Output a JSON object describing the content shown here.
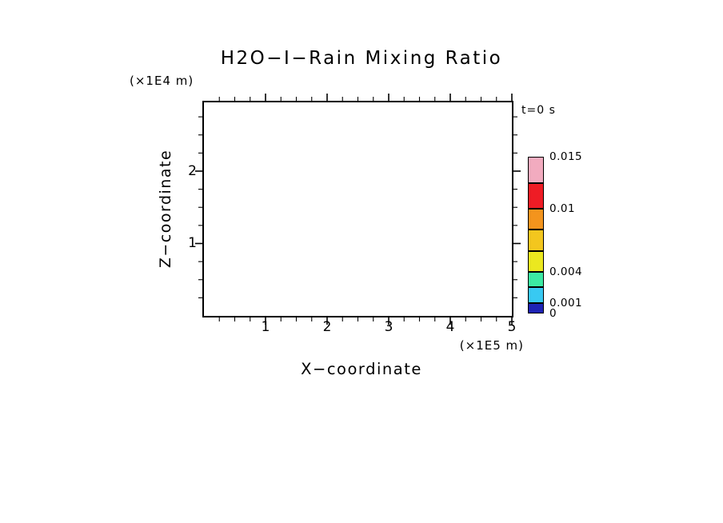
{
  "title": "H2O−I−Rain Mixing Ratio",
  "time_label": "t=0 s",
  "axes": {
    "x": {
      "label": "X−coordinate",
      "unit": "(×1E5 m)",
      "min": 0,
      "max": 5,
      "major_ticks": [
        1,
        2,
        3,
        4,
        5
      ],
      "minor_step": 0.25
    },
    "z": {
      "label": "Z−coordinate",
      "unit": "(×1E4 m)",
      "min": 0,
      "max": 2.95,
      "major_ticks": [
        1,
        2
      ],
      "minor_step": 0.25
    }
  },
  "colorbar": {
    "min": 0,
    "max": 0.015,
    "levels": [
      0,
      0.001,
      0.0025,
      0.004,
      0.006,
      0.008,
      0.01,
      0.0125,
      0.015
    ],
    "colors": [
      "#1e23b4",
      "#38c9f2",
      "#3ce9a3",
      "#ebe81f",
      "#f3c61e",
      "#f3941d",
      "#ee1c25",
      "#f2abbf"
    ],
    "labeled_levels": [
      {
        "value": 0.015,
        "label": "0.015"
      },
      {
        "value": 0.01,
        "label": "0.01"
      },
      {
        "value": 0.004,
        "label": "0.004"
      },
      {
        "value": 0.001,
        "label": "0.001"
      },
      {
        "value": 0,
        "label": "0"
      }
    ]
  },
  "chart_data": {
    "type": "heatmap",
    "title": "H2O−I−Rain Mixing Ratio",
    "xlabel": "X−coordinate (×1E5 m)",
    "ylabel": "Z−coordinate (×1E4 m)",
    "xlim": [
      0,
      5
    ],
    "ylim": [
      0,
      2.95
    ],
    "time": "t=0 s",
    "values": [
      [
        0
      ]
    ],
    "note": "Plot area is blank: the rain mixing ratio field is uniformly 0 everywhere at t=0 s, so no filled contours are drawn.",
    "contour_levels": [
      0,
      0.001,
      0.0025,
      0.004,
      0.006,
      0.008,
      0.01,
      0.0125,
      0.015
    ],
    "level_colors": [
      "#1e23b4",
      "#38c9f2",
      "#3ce9a3",
      "#ebe81f",
      "#f3c61e",
      "#f3941d",
      "#ee1c25",
      "#f2abbf"
    ],
    "labeled_levels": [
      0,
      0.001,
      0.004,
      0.01,
      0.015
    ],
    "grid": false,
    "legend_position": "right-colorbar"
  }
}
